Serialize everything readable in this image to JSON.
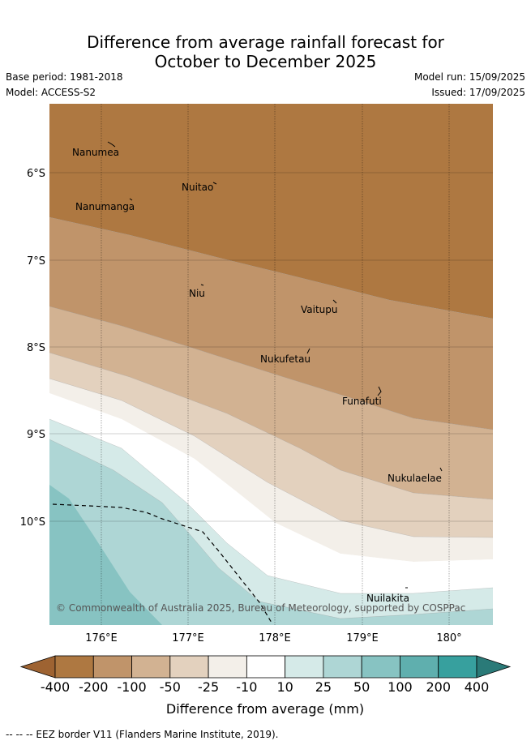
{
  "title_line1": "Difference from average rainfall forecast for",
  "title_line2": "October to December 2025",
  "base_period": "Base period: 1981-2018",
  "model": "Model: ACCESS-S2",
  "model_run": "Model run: 15/09/2025",
  "issued": "Issued: 17/09/2025",
  "lat_ticks": [
    "6°S",
    "7°S",
    "8°S",
    "9°S",
    "10°S"
  ],
  "lon_ticks": [
    "176°E",
    "177°E",
    "178°E",
    "179°E",
    "180°"
  ],
  "places": [
    "Nanumea",
    "Nuitao",
    "Nanumanga",
    "Niu",
    "Vaitupu",
    "Nukufetau",
    "Funafuti",
    "Nukulaelae",
    "Nuilakita"
  ],
  "copyright": "© Commonwealth of Australia 2025, Bureau of Meteorology, supported by COSPPac",
  "colorbar": {
    "labels": [
      "-400",
      "-200",
      "-100",
      "-50",
      "-25",
      "-10",
      "10",
      "25",
      "50",
      "100",
      "200",
      "400"
    ],
    "colors": [
      "#9e6332",
      "#ae7841",
      "#c0946a",
      "#d2b292",
      "#e3d1be",
      "#f3efe9",
      "#ffffff",
      "#d5eae8",
      "#aed6d5",
      "#87c3c2",
      "#5fafae",
      "#37a09e",
      "#2a7a78"
    ],
    "title": "Difference from average (mm)"
  },
  "footer": "-- -- -- EEZ border V11 (Flanders Marine Institute, 2019)."
}
